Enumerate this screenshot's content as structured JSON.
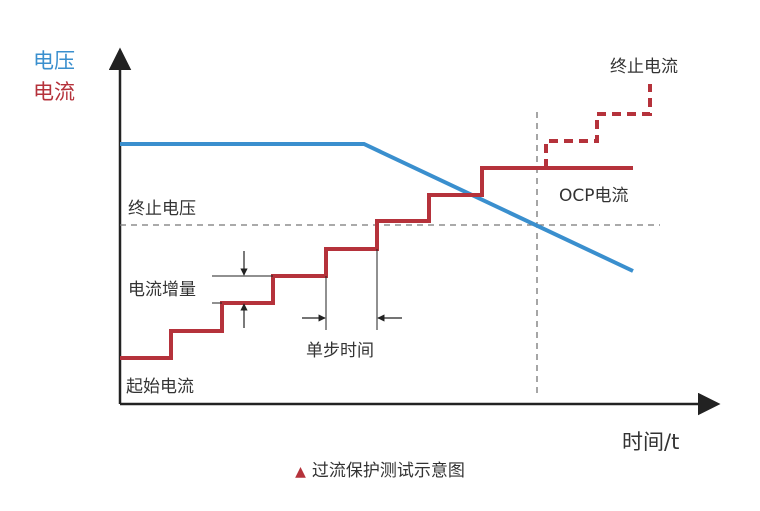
{
  "labels": {
    "voltage_axis": "电压",
    "current_axis": "电流",
    "time_axis": "时间/t",
    "stop_current": "终止电流",
    "ocp_current": "OCP电流",
    "stop_voltage": "终止电压",
    "current_increment": "电流增量",
    "step_time": "单步时间",
    "start_current": "起始电流"
  },
  "caption": {
    "marker": "▲",
    "text": "过流保护测试示意图"
  },
  "colors": {
    "voltage": "#3a8fce",
    "current": "#b5323b",
    "axis": "#222222",
    "dashed": "#777777"
  }
}
